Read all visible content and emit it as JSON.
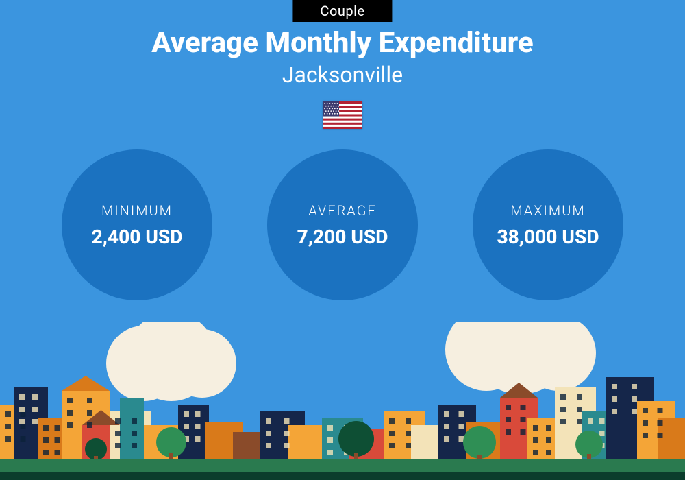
{
  "badge": {
    "text": "Couple",
    "bg": "#000000",
    "color": "#ffffff"
  },
  "title": "Average Monthly Expenditure",
  "subtitle": "Jacksonville",
  "background_color": "#3b95df",
  "circle_color": "#1b72c0",
  "flag": {
    "red": "#b22234",
    "white": "#ffffff",
    "blue": "#3c3b6e"
  },
  "stats": [
    {
      "label": "MINIMUM",
      "value": "2,400 USD"
    },
    {
      "label": "AVERAGE",
      "value": "7,200 USD"
    },
    {
      "label": "MAXIMUM",
      "value": "38,000 USD"
    }
  ],
  "city_palette": {
    "cloud": "#f6efe0",
    "grass": "#2a7a4f",
    "dark_grass": "#0b3d2c",
    "orange": "#f4a537",
    "dark_orange": "#d97a1a",
    "navy": "#15264a",
    "teal": "#2a8a8f",
    "red": "#d94a3a",
    "cream": "#f3e3b8",
    "brown": "#8a4b2a",
    "tree_green": "#2f8f55",
    "tree_dark": "#0e4f34"
  }
}
